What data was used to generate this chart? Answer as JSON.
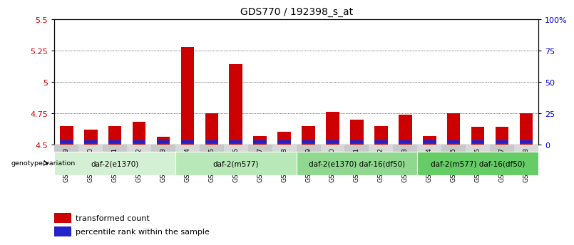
{
  "title": "GDS770 / 192398_s_at",
  "samples": [
    "GSM28389",
    "GSM28390",
    "GSM28391",
    "GSM28392",
    "GSM28393",
    "GSM28394",
    "GSM28395",
    "GSM28396",
    "GSM28397",
    "GSM28398",
    "GSM28399",
    "GSM28400",
    "GSM28401",
    "GSM28402",
    "GSM28403",
    "GSM28404",
    "GSM28405",
    "GSM28406",
    "GSM28407",
    "GSM28408"
  ],
  "red_values": [
    4.65,
    4.62,
    4.65,
    4.68,
    4.56,
    5.28,
    4.75,
    5.14,
    4.57,
    4.6,
    4.65,
    4.76,
    4.7,
    4.65,
    4.74,
    4.57,
    4.75,
    4.64,
    4.64,
    4.75
  ],
  "blue_heights": [
    0.025,
    0.022,
    0.022,
    0.022,
    0.022,
    0.022,
    0.025,
    0.025,
    0.022,
    0.022,
    0.025,
    0.025,
    0.025,
    0.022,
    0.022,
    0.022,
    0.022,
    0.022,
    0.025,
    0.025
  ],
  "base": 4.5,
  "ylim_left": [
    4.5,
    5.5
  ],
  "yticks_left": [
    4.5,
    4.75,
    5.0,
    5.25,
    5.5
  ],
  "yticks_right": [
    0,
    25,
    50,
    75,
    100
  ],
  "bar_color_red": "#cc0000",
  "bar_color_blue": "#2222cc",
  "groups": [
    {
      "label": "daf-2(e1370)",
      "start": 0,
      "end": 5,
      "color": "#d4f0d4"
    },
    {
      "label": "daf-2(m577)",
      "start": 5,
      "end": 10,
      "color": "#b8e8b8"
    },
    {
      "label": "daf-2(e1370) daf-16(df50)",
      "start": 10,
      "end": 15,
      "color": "#90d890"
    },
    {
      "label": "daf-2(m577) daf-16(df50)",
      "start": 15,
      "end": 20,
      "color": "#66cc66"
    }
  ],
  "genotype_label": "genotype/variation",
  "legend_red": "transformed count",
  "legend_blue": "percentile rank within the sample",
  "tick_label_color_left": "#cc0000",
  "tick_label_color_right": "#0000cc",
  "ytick_labels_left": [
    "4.5",
    "4.75",
    "5",
    "5.25",
    "5.5"
  ]
}
